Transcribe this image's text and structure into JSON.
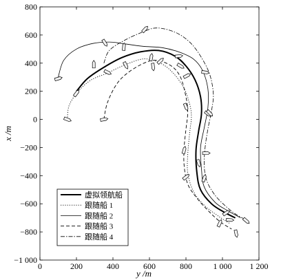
{
  "chart_data": {
    "type": "line",
    "xlabel": "y /m",
    "ylabel": "x /m",
    "x_axis": {
      "range": [
        0,
        1200
      ],
      "ticks": [
        "0",
        "200",
        "400",
        "600",
        "800",
        "1 000",
        "1 200"
      ]
    },
    "y_axis": {
      "range": [
        -1000,
        800
      ],
      "ticks": [
        "800",
        "600",
        "400",
        "200",
        "0",
        "−200",
        "−400",
        "−600",
        "−800",
        "−1 000"
      ]
    },
    "grid": false,
    "legend_position": "bottom-left",
    "series": [
      {
        "name": "虚拟领航船",
        "style": "solid-thick",
        "color": "#000000",
        "points": [
          [
            200,
            200
          ],
          [
            260,
            290
          ],
          [
            350,
            370
          ],
          [
            450,
            440
          ],
          [
            550,
            480
          ],
          [
            650,
            490
          ],
          [
            740,
            450
          ],
          [
            800,
            380
          ],
          [
            850,
            280
          ],
          [
            880,
            160
          ],
          [
            885,
            40
          ],
          [
            870,
            -80
          ],
          [
            855,
            -220
          ],
          [
            860,
            -380
          ],
          [
            880,
            -500
          ],
          [
            940,
            -600
          ],
          [
            1010,
            -660
          ],
          [
            1070,
            -700
          ]
        ]
      },
      {
        "name": "跟随船 1",
        "style": "dotted",
        "color": "#000000",
        "points": [
          [
            150,
            0
          ],
          [
            160,
            100
          ],
          [
            210,
            200
          ],
          [
            280,
            280
          ],
          [
            370,
            330
          ],
          [
            470,
            390
          ],
          [
            570,
            430
          ],
          [
            660,
            400
          ],
          [
            730,
            330
          ],
          [
            790,
            220
          ],
          [
            820,
            110
          ],
          [
            830,
            20
          ],
          [
            820,
            -100
          ],
          [
            810,
            -250
          ],
          [
            810,
            -380
          ],
          [
            840,
            -510
          ],
          [
            900,
            -610
          ],
          [
            980,
            -690
          ],
          [
            1040,
            -740
          ]
        ]
      },
      {
        "name": "跟随船 2",
        "style": "solid-thin",
        "color": "#000000",
        "points": [
          [
            100,
            300
          ],
          [
            130,
            420
          ],
          [
            200,
            500
          ],
          [
            290,
            540
          ],
          [
            380,
            550
          ],
          [
            450,
            540
          ],
          [
            560,
            520
          ],
          [
            670,
            510
          ],
          [
            760,
            480
          ],
          [
            840,
            430
          ],
          [
            890,
            350
          ],
          [
            920,
            220
          ],
          [
            920,
            80
          ],
          [
            900,
            -60
          ],
          [
            880,
            -200
          ],
          [
            885,
            -350
          ],
          [
            900,
            -480
          ],
          [
            960,
            -590
          ],
          [
            1030,
            -650
          ],
          [
            1100,
            -700
          ]
        ]
      },
      {
        "name": "跟随船 3",
        "style": "dashed",
        "color": "#000000",
        "points": [
          [
            350,
            0
          ],
          [
            370,
            120
          ],
          [
            420,
            250
          ],
          [
            480,
            330
          ],
          [
            570,
            400
          ],
          [
            640,
            420
          ],
          [
            720,
            380
          ],
          [
            770,
            300
          ],
          [
            800,
            160
          ],
          [
            810,
            50
          ],
          [
            800,
            -70
          ],
          [
            790,
            -200
          ],
          [
            790,
            -330
          ],
          [
            810,
            -460
          ],
          [
            860,
            -560
          ],
          [
            930,
            -660
          ],
          [
            990,
            -730
          ],
          [
            1050,
            -780
          ]
        ]
      },
      {
        "name": "跟随船 4",
        "style": "dash-dot",
        "color": "#000000",
        "points": [
          [
            350,
            400
          ],
          [
            380,
            490
          ],
          [
            460,
            560
          ],
          [
            560,
            620
          ],
          [
            640,
            650
          ],
          [
            740,
            620
          ],
          [
            820,
            550
          ],
          [
            880,
            450
          ],
          [
            930,
            320
          ],
          [
            950,
            180
          ],
          [
            940,
            60
          ],
          [
            920,
            -70
          ],
          [
            905,
            -200
          ],
          [
            900,
            -330
          ],
          [
            915,
            -440
          ],
          [
            960,
            -540
          ],
          [
            1020,
            -620
          ],
          [
            1080,
            -680
          ],
          [
            1140,
            -720
          ]
        ]
      }
    ],
    "ships": [
      [
        295,
        390
      ],
      [
        200,
        185
      ],
      [
        100,
        290
      ],
      [
        150,
        0
      ],
      [
        355,
        545
      ],
      [
        460,
        515
      ],
      [
        575,
        640
      ],
      [
        350,
        0
      ],
      [
        370,
        335
      ],
      [
        470,
        385
      ],
      [
        610,
        440
      ],
      [
        660,
        415
      ],
      [
        760,
        450
      ],
      [
        770,
        380
      ],
      [
        800,
        90
      ],
      [
        790,
        -220
      ],
      [
        800,
        -410
      ],
      [
        910,
        -240
      ],
      [
        920,
        40
      ],
      [
        870,
        -310
      ],
      [
        900,
        -420
      ],
      [
        1020,
        -665
      ],
      [
        1040,
        -715
      ],
      [
        1130,
        -720
      ],
      [
        1075,
        -810
      ],
      [
        985,
        -740
      ],
      [
        805,
        310
      ],
      [
        905,
        335
      ],
      [
        930,
        45
      ],
      [
        620,
        375
      ]
    ]
  }
}
